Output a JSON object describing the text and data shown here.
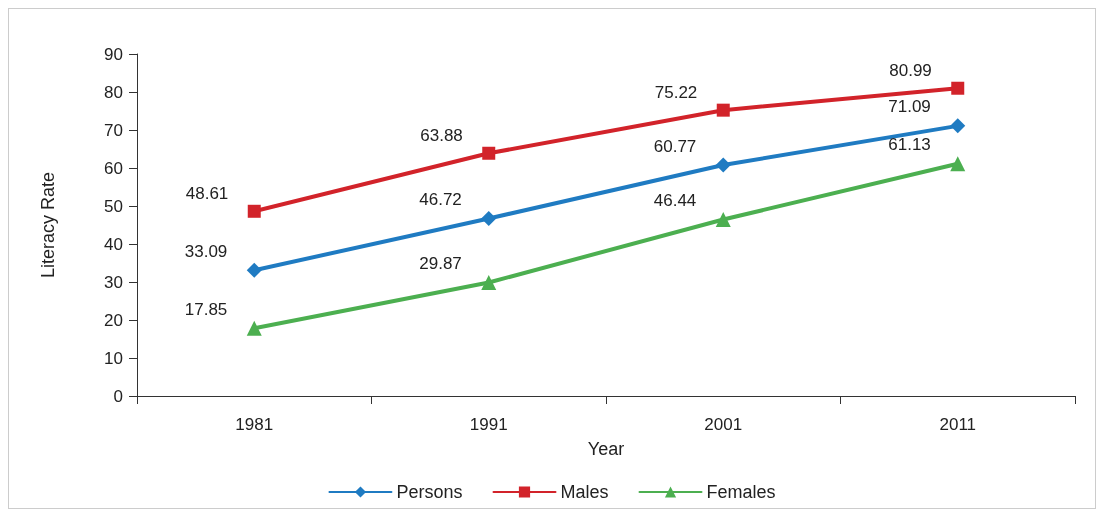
{
  "chart_data": {
    "type": "line",
    "xlabel": "Year",
    "ylabel": "Literacy Rate",
    "categories": [
      "1981",
      "1991",
      "2001",
      "2011"
    ],
    "series": [
      {
        "name": "Persons",
        "color": "#1f7bc2",
        "marker": "diamond",
        "values": [
          33.09,
          46.72,
          60.77,
          71.09
        ]
      },
      {
        "name": "Males",
        "color": "#d2232a",
        "marker": "square",
        "values": [
          48.61,
          63.88,
          75.22,
          80.99
        ]
      },
      {
        "name": "Females",
        "color": "#4caf50",
        "marker": "triangle",
        "values": [
          17.85,
          29.87,
          46.44,
          61.13
        ]
      }
    ],
    "ylim": [
      0,
      90
    ],
    "yticks": [
      0,
      10,
      20,
      30,
      40,
      50,
      60,
      70,
      80,
      90
    ],
    "grid": false,
    "legend": "bottom",
    "data_labels": true
  }
}
